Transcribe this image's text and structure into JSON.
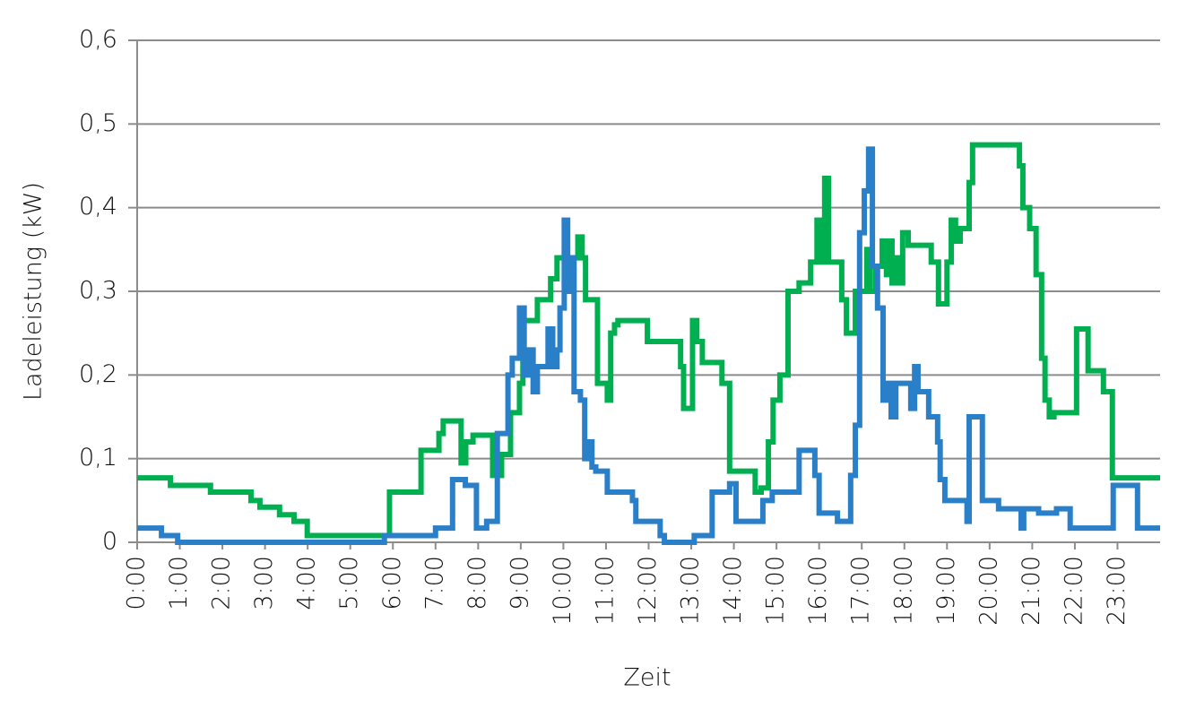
{
  "chart_data": {
    "type": "line",
    "step": "post",
    "xlabel": "Zeit",
    "ylabel": "Ladeleistung (kW)",
    "xlim": [
      0,
      24
    ],
    "ylim": [
      0,
      0.6
    ],
    "grid": true,
    "yticks": [
      0,
      {
        "value": 0.1,
        "label": "0,1"
      },
      {
        "value": 0.2,
        "label": "0,2"
      },
      {
        "value": 0.3,
        "label": "0,3"
      },
      {
        "value": 0.4,
        "label": "0,4"
      },
      {
        "value": 0.5,
        "label": "0,5"
      },
      {
        "value": 0.6,
        "label": "0,6"
      }
    ],
    "xticks": [
      {
        "value": 0,
        "label": "0:00"
      },
      {
        "value": 1,
        "label": "1:00"
      },
      {
        "value": 2,
        "label": "2:00"
      },
      {
        "value": 3,
        "label": "3:00"
      },
      {
        "value": 4,
        "label": "4:00"
      },
      {
        "value": 5,
        "label": "5:00"
      },
      {
        "value": 6,
        "label": "6:00"
      },
      {
        "value": 7,
        "label": "7:00"
      },
      {
        "value": 8,
        "label": "8:00"
      },
      {
        "value": 9,
        "label": "9:00"
      },
      {
        "value": 10,
        "label": "10:00"
      },
      {
        "value": 11,
        "label": "11:00"
      },
      {
        "value": 12,
        "label": "12:00"
      },
      {
        "value": 13,
        "label": "13:00"
      },
      {
        "value": 14,
        "label": "14:00"
      },
      {
        "value": 15,
        "label": "15:00"
      },
      {
        "value": 16,
        "label": "16:00"
      },
      {
        "value": 17,
        "label": "17:00"
      },
      {
        "value": 18,
        "label": "18:00"
      },
      {
        "value": 19,
        "label": "19:00"
      },
      {
        "value": 20,
        "label": "20:00"
      },
      {
        "value": 21,
        "label": "21:00"
      },
      {
        "value": 22,
        "label": "22:00"
      },
      {
        "value": 23,
        "label": "23:00"
      }
    ],
    "series": [
      {
        "color": "#00b050",
        "x": [
          0,
          0.78,
          1.72,
          2.67,
          2.88,
          3.34,
          3.68,
          3.99,
          5.92,
          6.66,
          7.08,
          7.18,
          7.6,
          7.71,
          7.88,
          8.34,
          8.55,
          8.76,
          8.97,
          9.05,
          9.39,
          9.7,
          9.85,
          10.34,
          10.44,
          10.52,
          10.8,
          11.03,
          11.11,
          11.2,
          11.28,
          11.97,
          12.75,
          12.82,
          13.03,
          13.13,
          13.26,
          13.72,
          13.9,
          14.5,
          14.64,
          14.81,
          14.92,
          15.08,
          15.27,
          15.53,
          15.8,
          15.95,
          16.05,
          16.13,
          16.22,
          16.53,
          16.64,
          16.85,
          17.12,
          17.2,
          17.33,
          17.48,
          17.58,
          17.65,
          17.71,
          17.8,
          17.88,
          17.96,
          18.09,
          18.63,
          18.8,
          19.0,
          19.1,
          19.2,
          19.31,
          19.52,
          19.6,
          20.7,
          20.78,
          20.94,
          21.09,
          21.22,
          21.3,
          21.4,
          21.51,
          22.04,
          22.31,
          22.67,
          22.88,
          24
        ],
        "values": [
          0.077,
          0.068,
          0.06,
          0.05,
          0.042,
          0.033,
          0.025,
          0.008,
          0.06,
          0.11,
          0.13,
          0.145,
          0.095,
          0.12,
          0.128,
          0.08,
          0.105,
          0.155,
          0.19,
          0.265,
          0.29,
          0.315,
          0.34,
          0.365,
          0.34,
          0.29,
          0.19,
          0.17,
          0.25,
          0.26,
          0.265,
          0.24,
          0.21,
          0.16,
          0.265,
          0.24,
          0.215,
          0.19,
          0.085,
          0.06,
          0.065,
          0.12,
          0.17,
          0.2,
          0.3,
          0.31,
          0.335,
          0.385,
          0.335,
          0.435,
          0.335,
          0.29,
          0.25,
          0.3,
          0.35,
          0.3,
          0.33,
          0.36,
          0.32,
          0.36,
          0.31,
          0.34,
          0.31,
          0.37,
          0.355,
          0.335,
          0.285,
          0.335,
          0.385,
          0.36,
          0.375,
          0.43,
          0.475,
          0.45,
          0.4,
          0.375,
          0.32,
          0.22,
          0.17,
          0.15,
          0.155,
          0.255,
          0.205,
          0.18,
          0.077,
          0.077
        ]
      },
      {
        "color": "#2a7fc9",
        "x": [
          0,
          0.57,
          0.95,
          5.8,
          7.0,
          7.4,
          7.7,
          7.96,
          8.2,
          8.45,
          8.7,
          8.8,
          8.97,
          9.08,
          9.18,
          9.29,
          9.39,
          9.64,
          9.75,
          9.85,
          9.92,
          10.02,
          10.1,
          10.17,
          10.25,
          10.4,
          10.5,
          10.6,
          10.67,
          10.76,
          11.03,
          11.62,
          11.7,
          12.27,
          12.37,
          13.07,
          13.49,
          13.9,
          14.05,
          14.68,
          14.9,
          15.53,
          15.9,
          16.0,
          16.43,
          16.74,
          16.85,
          16.95,
          17.06,
          17.16,
          17.25,
          17.37,
          17.5,
          17.6,
          17.69,
          17.8,
          18.15,
          18.24,
          18.32,
          18.57,
          18.78,
          18.84,
          18.95,
          19.47,
          19.52,
          19.83,
          20.21,
          20.74,
          20.8,
          21.15,
          21.57,
          21.89,
          22.9,
          23.47,
          24
        ],
        "values": [
          0.017,
          0.008,
          0,
          0.008,
          0.017,
          0.075,
          0.068,
          0.017,
          0.025,
          0.13,
          0.2,
          0.22,
          0.28,
          0.2,
          0.23,
          0.18,
          0.21,
          0.255,
          0.21,
          0.23,
          0.28,
          0.385,
          0.3,
          0.34,
          0.18,
          0.17,
          0.1,
          0.12,
          0.09,
          0.085,
          0.06,
          0.05,
          0.025,
          0.008,
          0,
          0.008,
          0.06,
          0.07,
          0.025,
          0.05,
          0.06,
          0.11,
          0.08,
          0.035,
          0.025,
          0.08,
          0.14,
          0.37,
          0.42,
          0.47,
          0.33,
          0.28,
          0.17,
          0.19,
          0.15,
          0.19,
          0.16,
          0.21,
          0.18,
          0.15,
          0.12,
          0.075,
          0.05,
          0.025,
          0.15,
          0.05,
          0.04,
          0.017,
          0.04,
          0.035,
          0.04,
          0.017,
          0.068,
          0.017,
          0.017
        ]
      }
    ]
  }
}
